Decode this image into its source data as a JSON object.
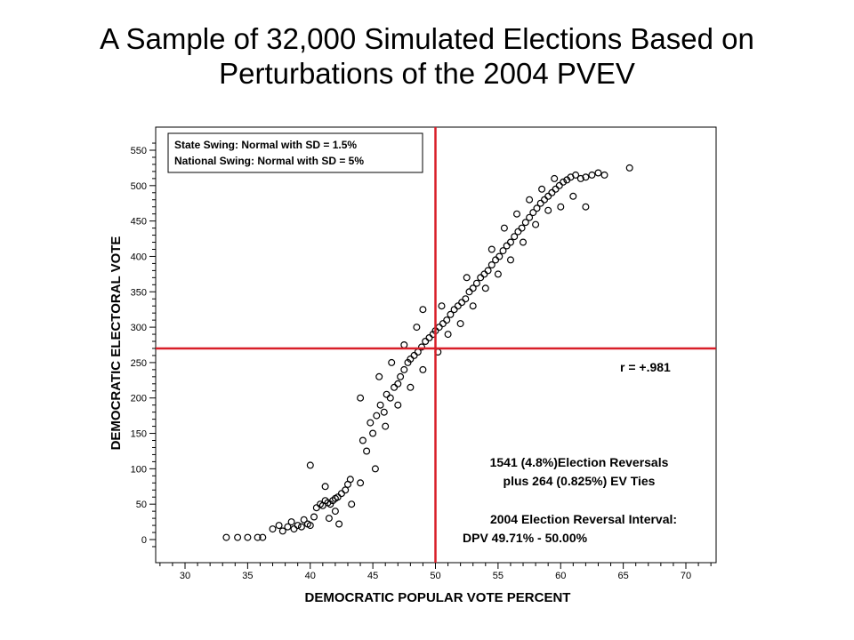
{
  "slide": {
    "title_line1": "A Sample of 32,000 Simulated Elections Based on",
    "title_line2": "Perturbations of the 2004 PVEV"
  },
  "colors": {
    "reference_lines": "#d81e28",
    "markers": "#000000",
    "frame": "#000000"
  },
  "chart_data": {
    "type": "scatter",
    "xlabel": "DEMOCRATIC POPULAR VOTE PERCENT",
    "ylabel": "DEMOCRATIC ELECTORAL VOTE",
    "xlim": [
      28,
      72
    ],
    "ylim": [
      -20,
      580
    ],
    "x_ticks": [
      30,
      35,
      40,
      45,
      50,
      55,
      60,
      65,
      70
    ],
    "y_ticks": [
      0,
      50,
      100,
      150,
      200,
      250,
      300,
      350,
      400,
      450,
      500,
      550
    ],
    "grid": false,
    "marker": "open-circle",
    "reference_lines": {
      "x": 50,
      "y": 270
    },
    "legend": {
      "placement": "top-left",
      "lines": [
        "State Swing: Normal with SD = 1.5%",
        "National Swing: Normal with SD =  5%"
      ]
    },
    "correlation_label": "r = +.981",
    "annotations": [
      "1541 (4.8%)Election Reversals",
      "plus 264 (0.825%)  EV Ties",
      "2004 Election Reversal Interval:",
      "DPV  49.71% - 50.00%"
    ],
    "points": [
      [
        33.3,
        3
      ],
      [
        34.2,
        3
      ],
      [
        35.0,
        3
      ],
      [
        35.8,
        3
      ],
      [
        36.2,
        3
      ],
      [
        37.0,
        15
      ],
      [
        37.5,
        20
      ],
      [
        37.8,
        12
      ],
      [
        38.2,
        18
      ],
      [
        38.5,
        25
      ],
      [
        38.7,
        15
      ],
      [
        39.0,
        20
      ],
      [
        39.3,
        18
      ],
      [
        39.5,
        28
      ],
      [
        39.8,
        22
      ],
      [
        40.0,
        20
      ],
      [
        40.3,
        32
      ],
      [
        40.5,
        45
      ],
      [
        40.8,
        50
      ],
      [
        41.0,
        48
      ],
      [
        41.2,
        55
      ],
      [
        41.4,
        52
      ],
      [
        41.6,
        50
      ],
      [
        41.8,
        55
      ],
      [
        42.0,
        58
      ],
      [
        42.2,
        60
      ],
      [
        42.5,
        65
      ],
      [
        42.8,
        70
      ],
      [
        43.0,
        78
      ],
      [
        43.2,
        85
      ],
      [
        41.5,
        30
      ],
      [
        42.3,
        22
      ],
      [
        40.0,
        105
      ],
      [
        41.2,
        75
      ],
      [
        42.0,
        40
      ],
      [
        43.3,
        50
      ],
      [
        44.0,
        80
      ],
      [
        44.5,
        125
      ],
      [
        45.2,
        100
      ],
      [
        44.2,
        140
      ],
      [
        44.8,
        165
      ],
      [
        45.0,
        150
      ],
      [
        45.3,
        175
      ],
      [
        45.6,
        190
      ],
      [
        45.9,
        180
      ],
      [
        46.1,
        205
      ],
      [
        46.4,
        200
      ],
      [
        46.7,
        215
      ],
      [
        47.0,
        220
      ],
      [
        47.2,
        230
      ],
      [
        47.5,
        240
      ],
      [
        47.8,
        250
      ],
      [
        48.0,
        255
      ],
      [
        48.3,
        260
      ],
      [
        48.6,
        265
      ],
      [
        48.9,
        272
      ],
      [
        49.2,
        280
      ],
      [
        49.5,
        285
      ],
      [
        49.8,
        290
      ],
      [
        50.0,
        295
      ],
      [
        50.3,
        300
      ],
      [
        50.6,
        305
      ],
      [
        50.9,
        310
      ],
      [
        51.2,
        318
      ],
      [
        51.5,
        325
      ],
      [
        51.8,
        330
      ],
      [
        52.1,
        335
      ],
      [
        52.4,
        340
      ],
      [
        52.7,
        350
      ],
      [
        53.0,
        355
      ],
      [
        53.3,
        362
      ],
      [
        53.6,
        370
      ],
      [
        53.9,
        375
      ],
      [
        54.2,
        380
      ],
      [
        54.5,
        388
      ],
      [
        54.8,
        395
      ],
      [
        55.1,
        400
      ],
      [
        55.4,
        408
      ],
      [
        55.7,
        415
      ],
      [
        56.0,
        420
      ],
      [
        56.3,
        428
      ],
      [
        56.6,
        435
      ],
      [
        56.9,
        440
      ],
      [
        57.2,
        448
      ],
      [
        57.5,
        455
      ],
      [
        57.8,
        462
      ],
      [
        58.1,
        468
      ],
      [
        58.4,
        475
      ],
      [
        58.7,
        480
      ],
      [
        59.0,
        485
      ],
      [
        59.3,
        490
      ],
      [
        59.6,
        495
      ],
      [
        59.9,
        500
      ],
      [
        60.2,
        505
      ],
      [
        60.5,
        508
      ],
      [
        60.8,
        512
      ],
      [
        61.2,
        515
      ],
      [
        61.6,
        510
      ],
      [
        62.0,
        512
      ],
      [
        62.5,
        515
      ],
      [
        63.0,
        518
      ],
      [
        63.5,
        515
      ],
      [
        65.5,
        525
      ],
      [
        44.0,
        200
      ],
      [
        45.5,
        230
      ],
      [
        46.5,
        250
      ],
      [
        47.5,
        275
      ],
      [
        48.5,
        300
      ],
      [
        49.0,
        325
      ],
      [
        50.2,
        265
      ],
      [
        51.0,
        290
      ],
      [
        52.0,
        305
      ],
      [
        53.0,
        330
      ],
      [
        54.0,
        355
      ],
      [
        55.0,
        375
      ],
      [
        56.0,
        395
      ],
      [
        57.0,
        420
      ],
      [
        58.0,
        445
      ],
      [
        59.0,
        465
      ],
      [
        55.5,
        440
      ],
      [
        57.5,
        480
      ],
      [
        60.0,
        470
      ],
      [
        61.0,
        485
      ],
      [
        62.0,
        470
      ],
      [
        46.0,
        160
      ],
      [
        47.0,
        190
      ],
      [
        48.0,
        215
      ],
      [
        49.0,
        240
      ],
      [
        50.5,
        330
      ],
      [
        52.5,
        370
      ],
      [
        54.5,
        410
      ],
      [
        56.5,
        460
      ],
      [
        58.5,
        495
      ],
      [
        59.5,
        510
      ]
    ]
  }
}
